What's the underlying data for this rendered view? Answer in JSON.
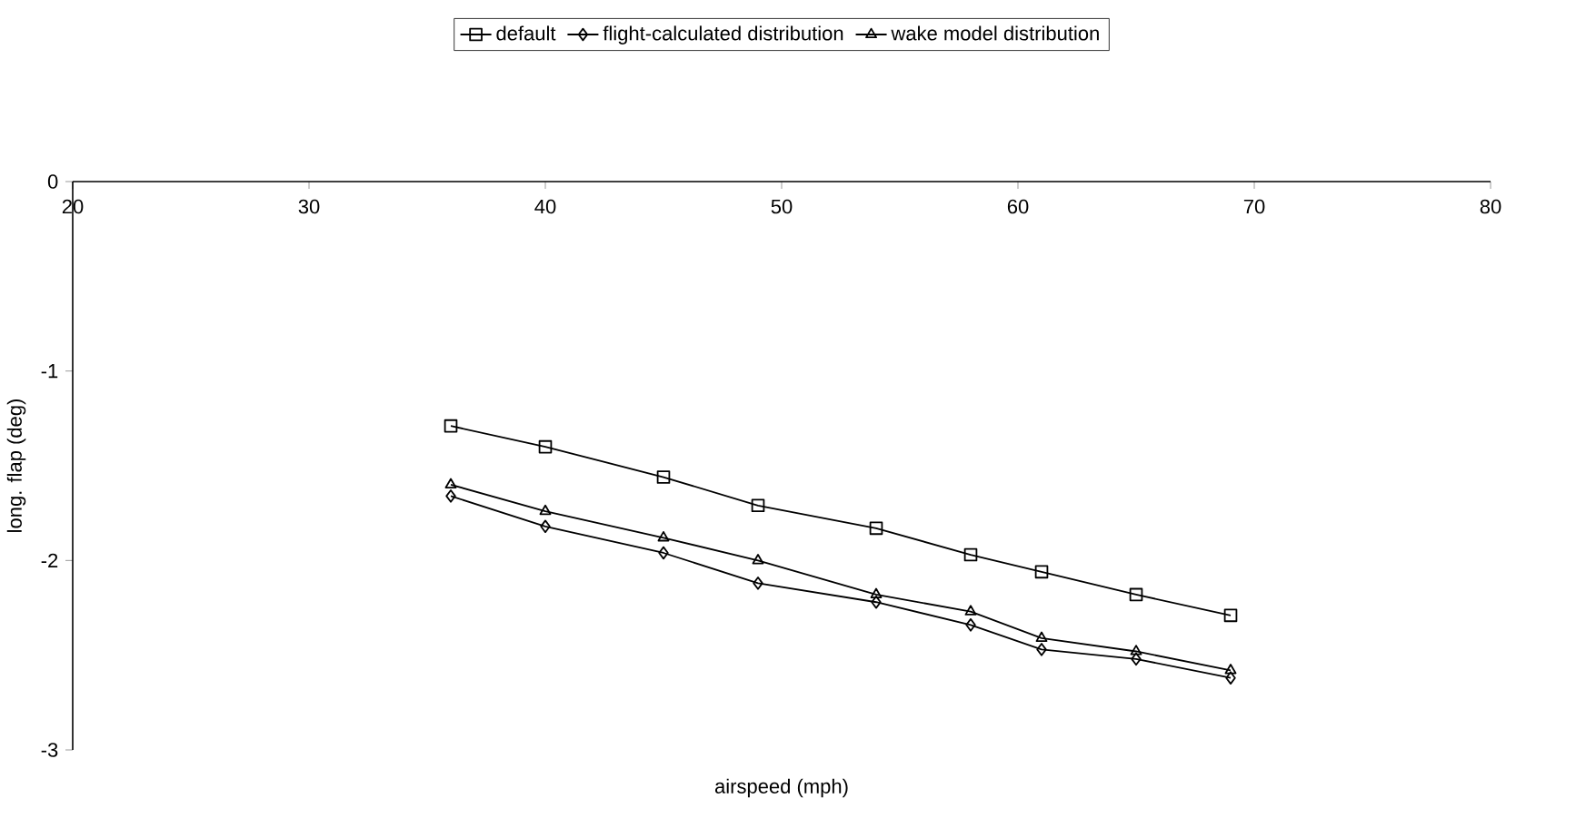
{
  "chart_data": {
    "type": "line",
    "xlabel": "airspeed (mph)",
    "ylabel": "long. flap (deg)",
    "x": [
      36,
      40,
      45,
      49,
      54,
      58,
      61,
      65,
      69
    ],
    "series": [
      {
        "name": "default",
        "color": "#000000",
        "marker": "square",
        "values": [
          -1.29,
          -1.4,
          -1.56,
          -1.71,
          -1.83,
          -1.97,
          -2.06,
          -2.18,
          -2.29
        ]
      },
      {
        "name": "flight-calculated distribution",
        "color": "#000000",
        "marker": "diamond",
        "values": [
          -1.66,
          -1.82,
          -1.96,
          -2.12,
          -2.22,
          -2.34,
          -2.47,
          -2.52,
          -2.62
        ]
      },
      {
        "name": "wake model distribution",
        "color": "#000000",
        "marker": "triangle",
        "values": [
          -1.6,
          -1.74,
          -1.88,
          -2.0,
          -2.18,
          -2.27,
          -2.41,
          -2.48,
          -2.58
        ]
      }
    ],
    "xlim": [
      20,
      80
    ],
    "xticks": [
      20,
      30,
      40,
      50,
      60,
      70,
      80
    ],
    "ylim": [
      -3,
      0
    ],
    "yticks": [
      -3,
      -2,
      -1,
      0
    ],
    "legend": "top",
    "grid": false,
    "line_style": "solid"
  }
}
